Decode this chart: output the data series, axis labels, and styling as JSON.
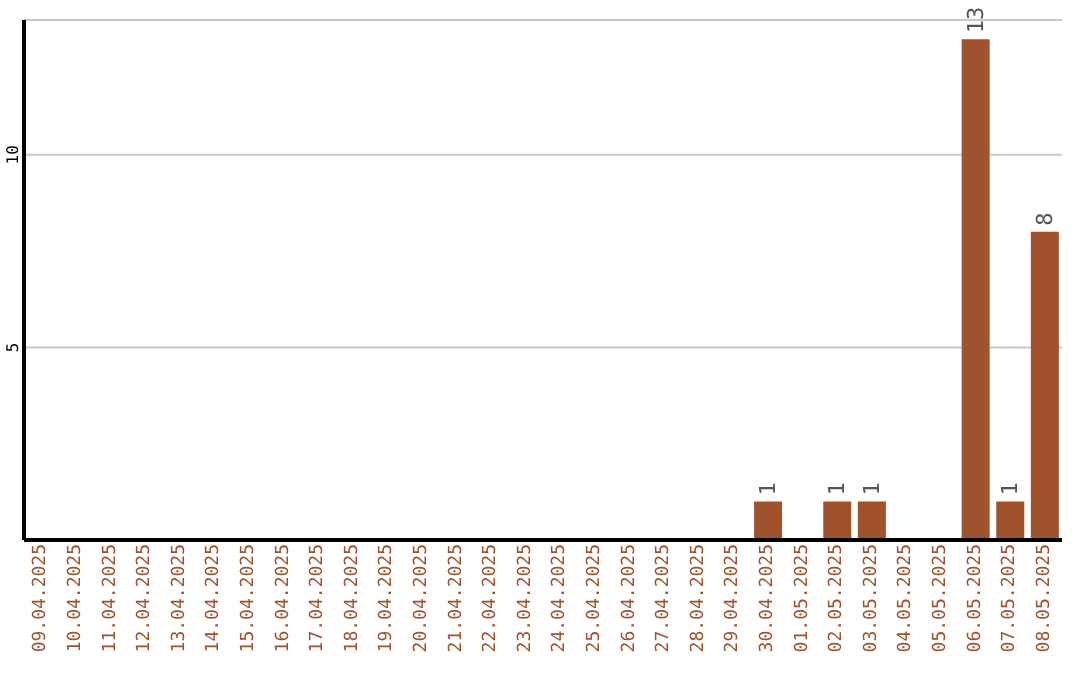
{
  "chart_data": {
    "type": "bar",
    "categories": [
      "09.04.2025",
      "10.04.2025",
      "11.04.2025",
      "12.04.2025",
      "13.04.2025",
      "14.04.2025",
      "15.04.2025",
      "16.04.2025",
      "17.04.2025",
      "18.04.2025",
      "19.04.2025",
      "20.04.2025",
      "21.04.2025",
      "22.04.2025",
      "23.04.2025",
      "24.04.2025",
      "25.04.2025",
      "26.04.2025",
      "27.04.2025",
      "28.04.2025",
      "29.04.2025",
      "30.04.2025",
      "01.05.2025",
      "02.05.2025",
      "03.05.2025",
      "04.05.2025",
      "05.05.2025",
      "06.05.2025",
      "07.05.2025",
      "08.05.2025"
    ],
    "values": [
      0,
      0,
      0,
      0,
      0,
      0,
      0,
      0,
      0,
      0,
      0,
      0,
      0,
      0,
      0,
      0,
      0,
      0,
      0,
      0,
      0,
      1,
      0,
      1,
      1,
      0,
      0,
      13,
      1,
      8
    ],
    "value_labels": [
      null,
      null,
      null,
      null,
      null,
      null,
      null,
      null,
      null,
      null,
      null,
      null,
      null,
      null,
      null,
      null,
      null,
      null,
      null,
      null,
      null,
      "1",
      null,
      "1",
      "1",
      null,
      null,
      "13",
      "1",
      "8"
    ],
    "color": "#a0522d",
    "ylim": [
      0,
      13.5
    ],
    "yticks": [
      5,
      10
    ],
    "grid": "y",
    "legend": false
  }
}
